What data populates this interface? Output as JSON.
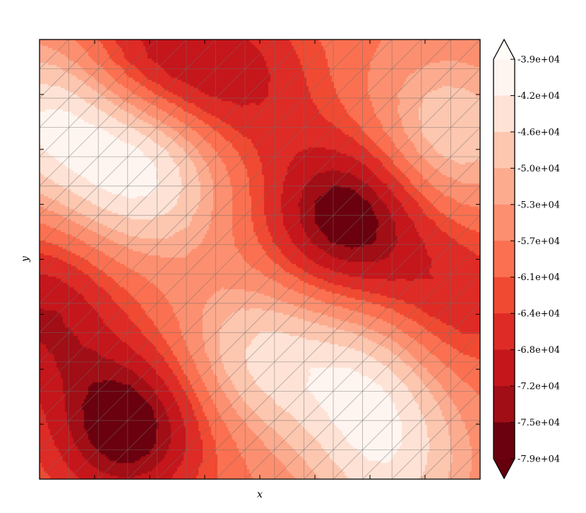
{
  "chart_data": {
    "type": "heatmap",
    "subtype": "filled-contour on triangulated grid",
    "title": "",
    "xlabel": "x",
    "ylabel": "y",
    "x_tick_labels_shown": false,
    "y_tick_labels_shown": false,
    "grid": "triangulation mesh overlay (gray)",
    "colormap": "Reds_r",
    "colorbar": {
      "position": "right",
      "extend": "both",
      "tick_labels": [
        "-3.9e+04",
        "-4.2e+04",
        "-4.6e+04",
        "-5.0e+04",
        "-5.3e+04",
        "-5.7e+04",
        "-6.1e+04",
        "-6.4e+04",
        "-6.8e+04",
        "-7.2e+04",
        "-7.5e+04",
        "-7.9e+04"
      ],
      "levels": [
        -39000,
        -42000,
        -46000,
        -50000,
        -53000,
        -57000,
        -61000,
        -64000,
        -68000,
        -72000,
        -75000,
        -79000
      ],
      "band_colors": [
        "#fff5f0",
        "#fee2d5",
        "#fcc6af",
        "#fcab8f",
        "#fc8f6f",
        "#fb7050",
        "#f14a32",
        "#de2b25",
        "#c5161b",
        "#a10e15",
        "#6b010e"
      ],
      "extend_top_color": "#fffbf7",
      "extend_bottom_color": "#67000d"
    },
    "field_features": [
      {
        "kind": "max",
        "x": 0.24,
        "y": 0.7,
        "value": -40000
      },
      {
        "kind": "max",
        "x": 0.92,
        "y": 0.78,
        "value": -45000
      },
      {
        "kind": "max",
        "x": 0.49,
        "y": 0.28,
        "value": -45000
      },
      {
        "kind": "max",
        "x": 0.74,
        "y": 0.22,
        "value": -44000
      },
      {
        "kind": "max",
        "x": 0.02,
        "y": 0.82,
        "value": -42000
      },
      {
        "kind": "max",
        "x": 0.8,
        "y": 0.02,
        "value": -46000
      },
      {
        "kind": "min",
        "x": 0.7,
        "y": 0.6,
        "value": -77000
      },
      {
        "kind": "min",
        "x": 0.2,
        "y": 0.12,
        "value": -77000
      },
      {
        "kind": "min",
        "x": 0.45,
        "y": 0.9,
        "value": -67000
      },
      {
        "kind": "min",
        "x": 0.25,
        "y": 0.97,
        "value": -68000
      },
      {
        "kind": "min",
        "x": 0.0,
        "y": 0.38,
        "value": -70000
      },
      {
        "kind": "min",
        "x": 0.94,
        "y": 0.4,
        "value": -66000
      }
    ]
  }
}
